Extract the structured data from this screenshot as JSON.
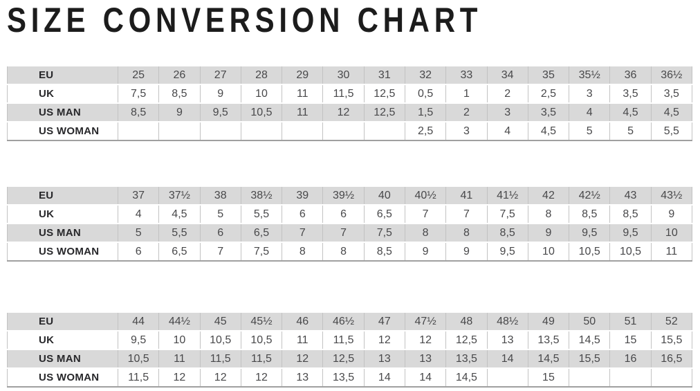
{
  "title": "SIZE CONVERSION CHART",
  "colors": {
    "shaded_row": "#d9d9d9",
    "plain_row": "#ffffff",
    "grid_line": "#c2c2c2",
    "table_bottom_rule": "#a0a0a0",
    "title_text": "#1c1c1c",
    "label_text": "#27272a",
    "value_text": "#48484a"
  },
  "row_labels": [
    "EU",
    "UK",
    "US MAN",
    "US WOMAN"
  ],
  "tables": [
    {
      "name": "sizes-25-to-36half",
      "rows": [
        {
          "label": "EU",
          "values": [
            "25",
            "26",
            "27",
            "28",
            "29",
            "30",
            "31",
            "32",
            "33",
            "34",
            "35",
            "35½",
            "36",
            "36½"
          ]
        },
        {
          "label": "UK",
          "values": [
            "7,5",
            "8,5",
            "9",
            "10",
            "11",
            "11,5",
            "12,5",
            "0,5",
            "1",
            "2",
            "2,5",
            "3",
            "3,5",
            "3,5"
          ]
        },
        {
          "label": "US MAN",
          "values": [
            "8,5",
            "9",
            "9,5",
            "10,5",
            "11",
            "12",
            "12,5",
            "1,5",
            "2",
            "3",
            "3,5",
            "4",
            "4,5",
            "4,5"
          ]
        },
        {
          "label": "US WOMAN",
          "values": [
            "",
            "",
            "",
            "",
            "",
            "",
            "",
            "2,5",
            "3",
            "4",
            "4,5",
            "5",
            "5",
            "5,5"
          ]
        }
      ]
    },
    {
      "name": "sizes-37-to-43half",
      "rows": [
        {
          "label": "EU",
          "values": [
            "37",
            "37½",
            "38",
            "38½",
            "39",
            "39½",
            "40",
            "40½",
            "41",
            "41½",
            "42",
            "42½",
            "43",
            "43½"
          ]
        },
        {
          "label": "UK",
          "values": [
            "4",
            "4,5",
            "5",
            "5,5",
            "6",
            "6",
            "6,5",
            "7",
            "7",
            "7,5",
            "8",
            "8,5",
            "8,5",
            "9"
          ]
        },
        {
          "label": "US MAN",
          "values": [
            "5",
            "5,5",
            "6",
            "6,5",
            "7",
            "7",
            "7,5",
            "8",
            "8",
            "8,5",
            "9",
            "9,5",
            "9,5",
            "10"
          ]
        },
        {
          "label": "US WOMAN",
          "values": [
            "6",
            "6,5",
            "7",
            "7,5",
            "8",
            "8",
            "8,5",
            "9",
            "9",
            "9,5",
            "10",
            "10,5",
            "10,5",
            "11"
          ]
        }
      ]
    },
    {
      "name": "sizes-44-to-52",
      "rows": [
        {
          "label": "EU",
          "values": [
            "44",
            "44½",
            "45",
            "45½",
            "46",
            "46½",
            "47",
            "47½",
            "48",
            "48½",
            "49",
            "50",
            "51",
            "52"
          ]
        },
        {
          "label": "UK",
          "values": [
            "9,5",
            "10",
            "10,5",
            "10,5",
            "11",
            "11,5",
            "12",
            "12",
            "12,5",
            "13",
            "13,5",
            "14,5",
            "15",
            "15,5"
          ]
        },
        {
          "label": "US MAN",
          "values": [
            "10,5",
            "11",
            "11,5",
            "11,5",
            "12",
            "12,5",
            "13",
            "13",
            "13,5",
            "14",
            "14,5",
            "15,5",
            "16",
            "16,5"
          ]
        },
        {
          "label": "US WOMAN",
          "values": [
            "11,5",
            "12",
            "12",
            "12",
            "13",
            "13,5",
            "14",
            "14",
            "14,5",
            "",
            "15",
            "",
            "",
            ""
          ]
        }
      ]
    }
  ]
}
